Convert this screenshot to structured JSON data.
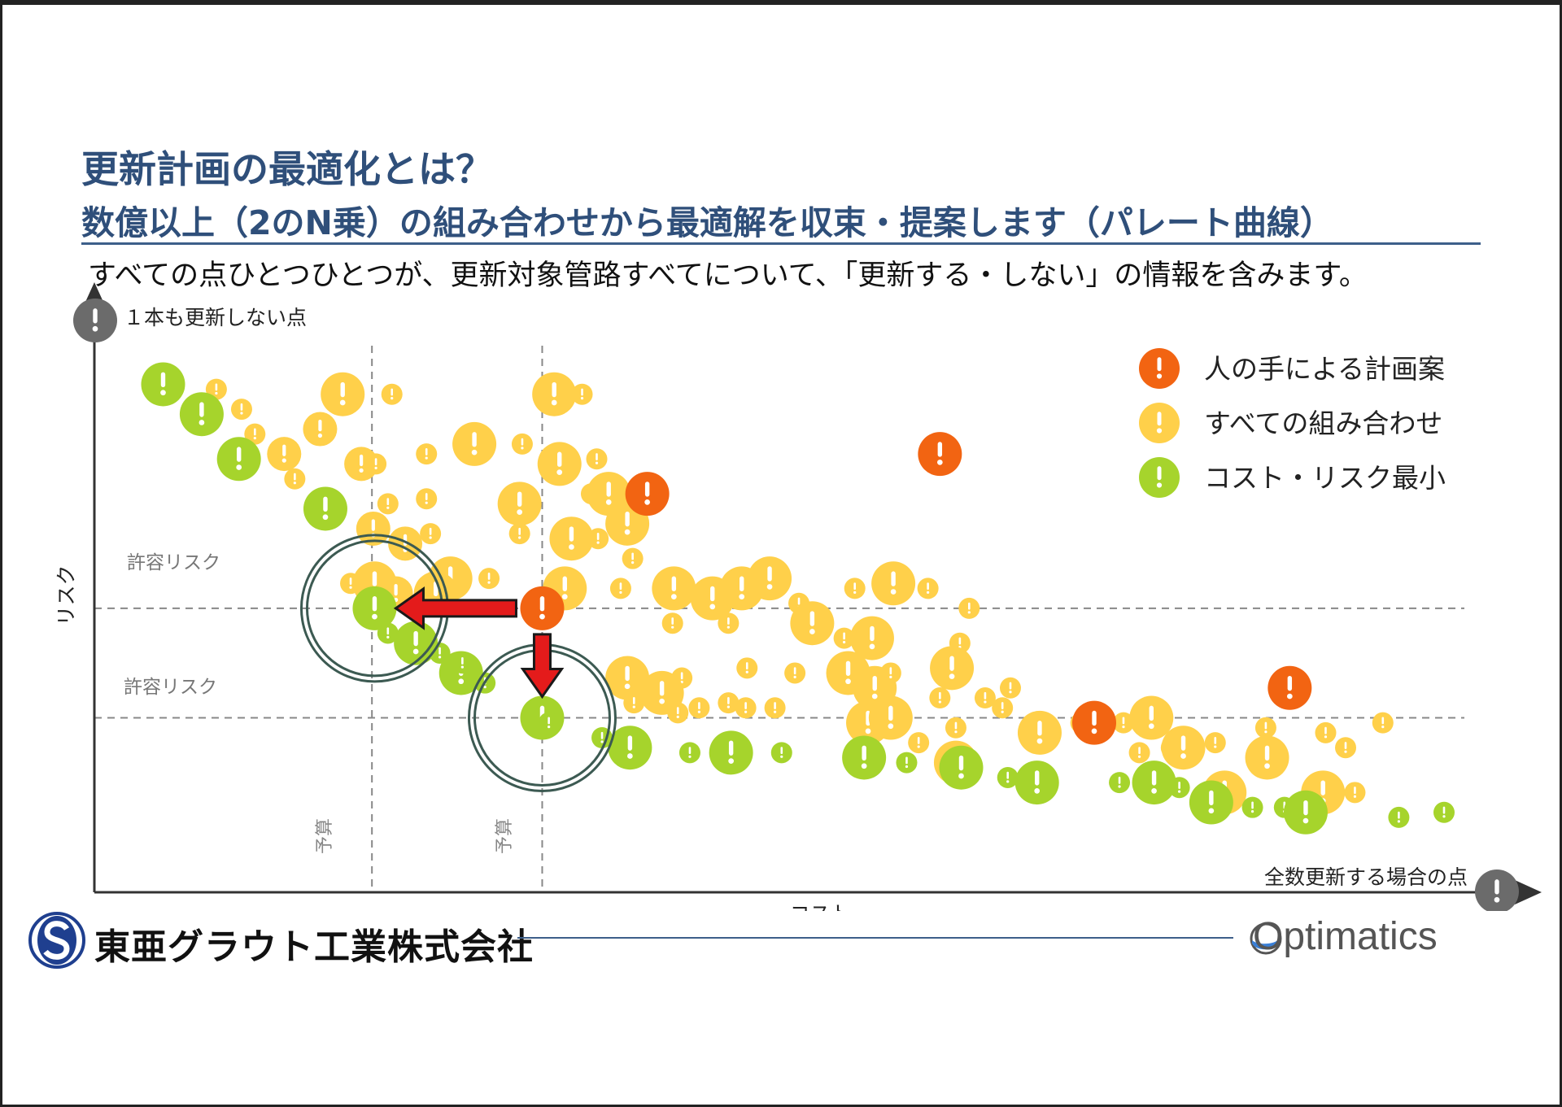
{
  "header": {
    "title": "更新計画の最適化とは？",
    "subtitle": "数億以上（2のN乗）の組み合わせから最適解を収束・提案します（パレート曲線）",
    "description": "すべての点ひとつひとつが、更新対象管路すべてについて、「更新する・しない」の情報を含みます。"
  },
  "footer": {
    "company": "東亜グラウト工業株式会社",
    "brand": "Optimatics"
  },
  "colors": {
    "orange": "#f26412",
    "yellow": "#ffd04a",
    "green": "#a6d42c",
    "title": "#2f4f7a",
    "ring": "#3c5a52",
    "arrow": "#e41b1b",
    "gray": "#6b6b6b"
  },
  "chart_data": {
    "type": "scatter",
    "title": "",
    "xlabel": "コスト",
    "ylabel": "リスク",
    "xlim": [
      0,
      1000
    ],
    "ylim": [
      0,
      100
    ],
    "grid": false,
    "legend_position": "top-right",
    "legend": [
      "人の手による計画案",
      "すべての組み合わせ",
      "コスト・リスク最小"
    ],
    "annotations": {
      "origin_point": "１本も更新しない点",
      "end_point": "全数更新する場合の点",
      "risk_label_1": "許容リスク",
      "risk_label_2": "許容リスク",
      "budget_label_1": "予算",
      "budget_label_2": "予算"
    },
    "reference_lines": {
      "risk": [
        51,
        29
      ],
      "budget": [
        194,
        322
      ]
    },
    "series": [
      {
        "name": "人の手による計画案",
        "points": [
          [
            322,
            51,
            "l"
          ],
          [
            401,
            74,
            "l"
          ],
          [
            621,
            82,
            "l"
          ],
          [
            737,
            28,
            "l"
          ],
          [
            884,
            35,
            "l"
          ]
        ]
      },
      {
        "name": "すべての組み合わせ",
        "points": [
          [
            77,
            95,
            "s"
          ],
          [
            96,
            91,
            "s"
          ],
          [
            106,
            86,
            "s"
          ],
          [
            128,
            82,
            "m"
          ],
          [
            136,
            77,
            "s"
          ],
          [
            155,
            87,
            "m"
          ],
          [
            172,
            94,
            "l"
          ],
          [
            186,
            80,
            "m"
          ],
          [
            197,
            80,
            "s"
          ],
          [
            209,
            94,
            "s"
          ],
          [
            206,
            72,
            "s"
          ],
          [
            235,
            82,
            "s"
          ],
          [
            238,
            66,
            "s"
          ],
          [
            235,
            73,
            "s"
          ],
          [
            195,
            67,
            "m"
          ],
          [
            219,
            64,
            "m"
          ],
          [
            271,
            84,
            "l"
          ],
          [
            307,
            84,
            "s"
          ],
          [
            331,
            94,
            "l"
          ],
          [
            352,
            94,
            "s"
          ],
          [
            335,
            80,
            "l"
          ],
          [
            363,
            81,
            "s"
          ],
          [
            359,
            74,
            "s"
          ],
          [
            364,
            65,
            "s"
          ],
          [
            390,
            61,
            "s"
          ],
          [
            386,
            68,
            "l"
          ],
          [
            344,
            65,
            "l"
          ],
          [
            372,
            74,
            "l"
          ],
          [
            305,
            72,
            "l"
          ],
          [
            305,
            66,
            "s"
          ],
          [
            282,
            57,
            "s"
          ],
          [
            253,
            57,
            "l"
          ],
          [
            196,
            56,
            "l"
          ],
          [
            178,
            56,
            "s"
          ],
          [
            212,
            54,
            "m"
          ],
          [
            242,
            54,
            "l"
          ],
          [
            339,
            55,
            "l"
          ],
          [
            381,
            55,
            "s"
          ],
          [
            421,
            55,
            "l"
          ],
          [
            420,
            48,
            "s"
          ],
          [
            450,
            53,
            "l"
          ],
          [
            462,
            48,
            "s"
          ],
          [
            472,
            55,
            "l"
          ],
          [
            493,
            57,
            "l"
          ],
          [
            515,
            52,
            "s"
          ],
          [
            525,
            48,
            "l"
          ],
          [
            557,
            55,
            "s"
          ],
          [
            612,
            55,
            "s"
          ],
          [
            586,
            56,
            "l"
          ],
          [
            643,
            51,
            "s"
          ],
          [
            549,
            45,
            "s"
          ],
          [
            570,
            45,
            "l"
          ],
          [
            636,
            44,
            "s"
          ],
          [
            427,
            37,
            "s"
          ],
          [
            476,
            39,
            "s"
          ],
          [
            512,
            38,
            "s"
          ],
          [
            552,
            38,
            "l"
          ],
          [
            572,
            35,
            "l"
          ],
          [
            584,
            38,
            "s"
          ],
          [
            630,
            39,
            "l"
          ],
          [
            386,
            37,
            "l"
          ],
          [
            391,
            32,
            "s"
          ],
          [
            412,
            34,
            "l"
          ],
          [
            440,
            31,
            "s"
          ],
          [
            497,
            31,
            "s"
          ],
          [
            424,
            30,
            "s"
          ],
          [
            462,
            32,
            "s"
          ],
          [
            475,
            31,
            "s"
          ],
          [
            567,
            28,
            "l"
          ],
          [
            621,
            33,
            "s"
          ],
          [
            655,
            33,
            "s"
          ],
          [
            633,
            27,
            "s"
          ],
          [
            674,
            35,
            "s"
          ],
          [
            668,
            31,
            "s"
          ],
          [
            605,
            24,
            "s"
          ],
          [
            584,
            29,
            "l"
          ],
          [
            633,
            20,
            "l"
          ],
          [
            696,
            26,
            "l"
          ],
          [
            727,
            28,
            "s"
          ],
          [
            759,
            28,
            "s"
          ],
          [
            776,
            28,
            "s"
          ],
          [
            771,
            22,
            "s"
          ],
          [
            795,
            23,
            "s"
          ],
          [
            828,
            24,
            "s"
          ],
          [
            866,
            27,
            "s"
          ],
          [
            911,
            26,
            "s"
          ],
          [
            926,
            23,
            "s"
          ],
          [
            867,
            21,
            "l"
          ],
          [
            909,
            14,
            "l"
          ],
          [
            933,
            14,
            "s"
          ],
          [
            954,
            28,
            "s"
          ],
          [
            835,
            14,
            "l"
          ],
          [
            804,
            23,
            "l"
          ],
          [
            780,
            29,
            "l"
          ]
        ]
      },
      {
        "name": "コスト・リスク最小",
        "points": [
          [
            37,
            96,
            "l"
          ],
          [
            66,
            90,
            "l"
          ],
          [
            94,
            81,
            "l"
          ],
          [
            159,
            71,
            "l"
          ],
          [
            196,
            51,
            "l"
          ],
          [
            206,
            46,
            "s"
          ],
          [
            227,
            44,
            "l"
          ],
          [
            245,
            42,
            "s"
          ],
          [
            261,
            38,
            "l"
          ],
          [
            262,
            40,
            "s"
          ],
          [
            279,
            36,
            "s"
          ],
          [
            322,
            29,
            "l"
          ],
          [
            327,
            28,
            "s"
          ],
          [
            367,
            25,
            "s"
          ],
          [
            388,
            23,
            "l"
          ],
          [
            433,
            22,
            "s"
          ],
          [
            464,
            22,
            "l"
          ],
          [
            502,
            22,
            "s"
          ],
          [
            564,
            21,
            "l"
          ],
          [
            596,
            20,
            "s"
          ],
          [
            637,
            19,
            "l"
          ],
          [
            672,
            17,
            "s"
          ],
          [
            694,
            16,
            "l"
          ],
          [
            756,
            16,
            "s"
          ],
          [
            782,
            16,
            "l"
          ],
          [
            801,
            15,
            "s"
          ],
          [
            825,
            12,
            "l"
          ],
          [
            856,
            11,
            "s"
          ],
          [
            880,
            11,
            "s"
          ],
          [
            896,
            10,
            "l"
          ],
          [
            966,
            9,
            "s"
          ],
          [
            1000,
            10,
            "s"
          ]
        ]
      }
    ],
    "plan_arrows": [
      {
        "from": [
          322,
          51
        ],
        "to": [
          196,
          51
        ]
      },
      {
        "from": [
          322,
          51
        ],
        "to": [
          322,
          29
        ]
      }
    ]
  }
}
